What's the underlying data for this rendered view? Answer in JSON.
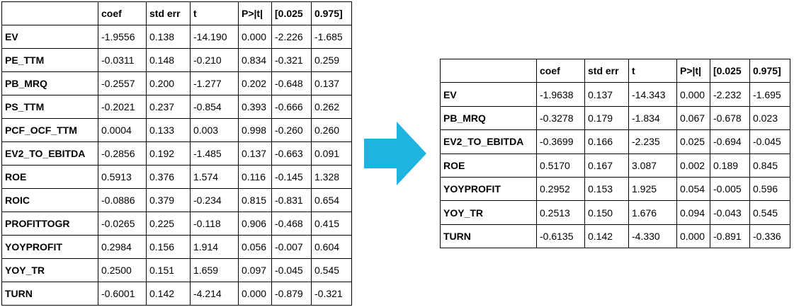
{
  "colors": {
    "arrow": "#1fb3e0",
    "border": "#000000",
    "text": "#000000"
  },
  "arrow_icon": "right-arrow-icon",
  "before": {
    "headers": [
      "",
      "coef",
      "std err",
      "t",
      "P>|t|",
      "[0.025",
      "0.975]"
    ],
    "rows": [
      [
        "EV",
        "-1.9556",
        "0.138",
        "-14.190",
        "0.000",
        "-2.226",
        "-1.685"
      ],
      [
        "PE_TTM",
        "-0.0311",
        "0.148",
        "-0.210",
        "0.834",
        "-0.321",
        "0.259"
      ],
      [
        "PB_MRQ",
        "-0.2557",
        "0.200",
        "-1.277",
        "0.202",
        "-0.648",
        "0.137"
      ],
      [
        "PS_TTM",
        "-0.2021",
        "0.237",
        "-0.854",
        "0.393",
        "-0.666",
        "0.262"
      ],
      [
        "PCF_OCF_TTM",
        "0.0004",
        "0.133",
        "0.003",
        "0.998",
        "-0.260",
        "0.260"
      ],
      [
        "EV2_TO_EBITDA",
        "-0.2856",
        "0.192",
        "-1.485",
        "0.137",
        "-0.663",
        "0.091"
      ],
      [
        "ROE",
        "0.5913",
        "0.376",
        "1.574",
        "0.116",
        "-0.145",
        "1.328"
      ],
      [
        "ROIC",
        "-0.0886",
        "0.379",
        "-0.234",
        "0.815",
        "-0.831",
        "0.654"
      ],
      [
        "PROFITTOGR",
        "-0.0265",
        "0.225",
        "-0.118",
        "0.906",
        "-0.468",
        "0.415"
      ],
      [
        "YOYPROFIT",
        "0.2984",
        "0.156",
        "1.914",
        "0.056",
        "-0.007",
        "0.604"
      ],
      [
        "YOY_TR",
        "0.2500",
        "0.151",
        "1.659",
        "0.097",
        "-0.045",
        "0.545"
      ],
      [
        "TURN",
        "-0.6001",
        "0.142",
        "-4.214",
        "0.000",
        "-0.879",
        "-0.321"
      ]
    ]
  },
  "after": {
    "headers": [
      "",
      "coef",
      "std err",
      "t",
      "P>|t|",
      "[0.025",
      "0.975]"
    ],
    "rows": [
      [
        "EV",
        "-1.9638",
        "0.137",
        "-14.343",
        "0.000",
        "-2.232",
        "-1.695"
      ],
      [
        "PB_MRQ",
        "-0.3278",
        "0.179",
        "-1.834",
        "0.067",
        "-0.678",
        "0.023"
      ],
      [
        "EV2_TO_EBITDA",
        "-0.3699",
        "0.166",
        "-2.235",
        "0.025",
        "-0.694",
        "-0.045"
      ],
      [
        "ROE",
        "0.5170",
        "0.167",
        "3.087",
        "0.002",
        "0.189",
        "0.845"
      ],
      [
        "YOYPROFIT",
        "0.2952",
        "0.153",
        "1.925",
        "0.054",
        "-0.005",
        "0.596"
      ],
      [
        "YOY_TR",
        "0.2513",
        "0.150",
        "1.676",
        "0.094",
        "-0.043",
        "0.545"
      ],
      [
        "TURN",
        "-0.6135",
        "0.142",
        "-4.330",
        "0.000",
        "-0.891",
        "-0.336"
      ]
    ]
  }
}
